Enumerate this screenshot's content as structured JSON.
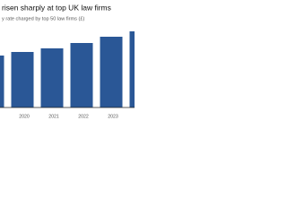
{
  "chart_data": {
    "type": "bar",
    "title": "risen sharply at top UK law firms",
    "subtitle": "y rate charged by top 50 law firms (£)",
    "categories": [
      null,
      "2020",
      "2021",
      "2022",
      "2023",
      null
    ],
    "values": [
      522,
      558,
      594,
      648,
      711,
      765
    ],
    "color": "#2a5796",
    "ylim": [
      0,
      900
    ]
  }
}
